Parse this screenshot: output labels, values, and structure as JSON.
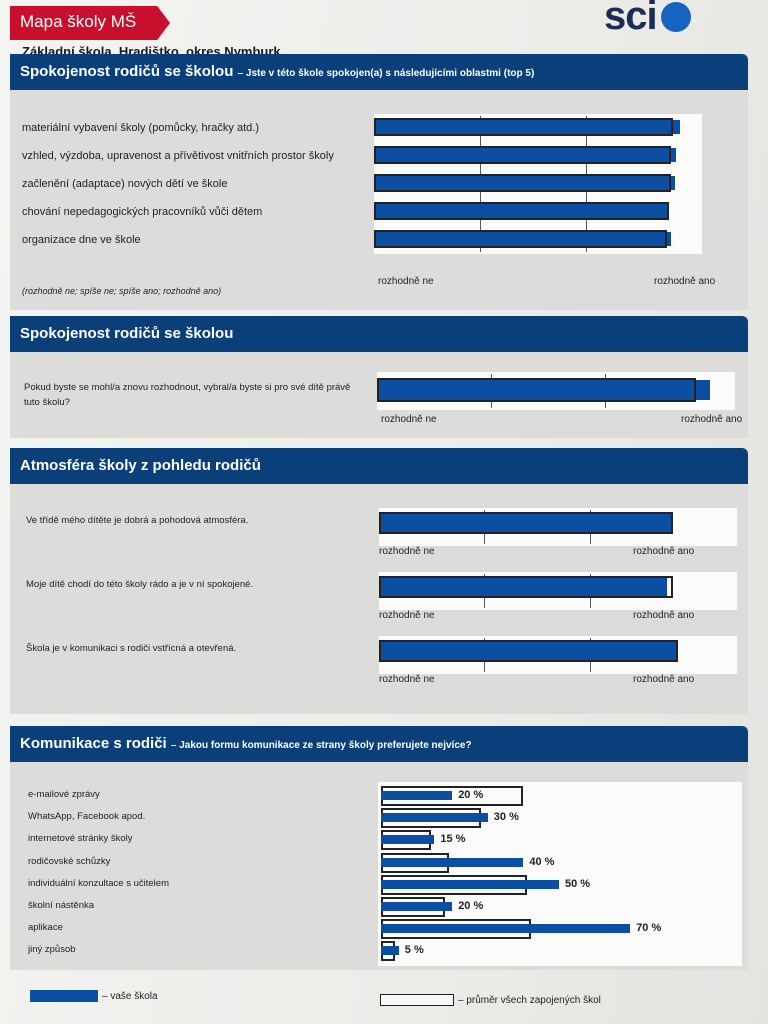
{
  "header": {
    "tag": "Mapa školy MŠ",
    "logo": "sci",
    "school": "Základní škola, Hradištko, okres Nymburk"
  },
  "colors": {
    "accent": "#0b3f7a",
    "bar": "#0b4ea2",
    "tag": "#c8102e"
  },
  "legend": {
    "ours": "– vaše škola",
    "avg": "– průměr všech zapojených škol"
  },
  "chart_data": [
    {
      "type": "bar",
      "title": "Spokojenost rodičů se školou",
      "subtitle": "– Jste v této škole spokojen(a) s následujícími oblastmi (top 5)",
      "scale_note": "(rozhodně ne; spíše ne; spíše ano; rozhodně ano)",
      "scale_min_label": "rozhodně ne",
      "scale_max_label": "rozhodně ano",
      "xlim": [
        1,
        4
      ],
      "categories": [
        "materiální vybavení školy (pomůcky, hračky atd.)",
        "vzhled, výzdoba, upravenost a přívětivost vnitřních prostor školy",
        "začlenění (adaptace) nových dětí ve škole",
        "chování nepedagogických pracovníků vůči dětem",
        "organizace dne ve škole"
      ],
      "series": [
        {
          "values": [
            3.89,
            3.85,
            3.84,
            3.78,
            3.8
          ]
        },
        {
          "values": [
            3.82,
            3.8,
            3.8,
            3.78,
            3.76
          ]
        }
      ]
    },
    {
      "type": "bar",
      "title": "Spokojenost rodičů se školou",
      "scale_min_label": "rozhodně ne",
      "scale_max_label": "rozhodně ano",
      "xlim": [
        1,
        4
      ],
      "categories": [
        "Pokud byste se mohl/a znovu rozhodnout, vybral/a byste si pro své dítě právě tuto školu?"
      ],
      "series": [
        {
          "values": [
            3.92
          ]
        },
        {
          "values": [
            3.8
          ]
        }
      ]
    },
    {
      "type": "bar",
      "title": "Atmosféra školy z pohledu rodičů",
      "scale_min_label": "rozhodně ne",
      "scale_max_label": "rozhodně ano",
      "xlim": [
        1,
        4
      ],
      "categories": [
        "Ve třídě mého dítěte je dobrá a pohodová atmosféra.",
        "Moje dítě chodí do této školy rádo a je v ní spokojené.",
        "Škola je v komunikaci s rodiči vstřícná a otevřená."
      ],
      "series": [
        {
          "values": [
            3.77,
            3.73,
            3.84
          ]
        },
        {
          "values": [
            3.79,
            3.79,
            3.84
          ]
        }
      ]
    },
    {
      "type": "bar",
      "title": "Komunikace s rodiči",
      "subtitle": "– Jakou formu komunikace ze strany školy preferujete nejvíce?",
      "unit": "%",
      "xlim": [
        0,
        100
      ],
      "categories": [
        "e-mailové zprávy",
        "WhatsApp, Facebook apod.",
        "internetové stránky školy",
        "rodičovské schůzky",
        "individuální konzultace s učitelem",
        "školní nástěnka",
        "aplikace",
        "jiný způsob"
      ],
      "labels": [
        "20 %",
        "30 %",
        "15 %",
        "40 %",
        "50 %",
        "20 %",
        "70 %",
        "5 %"
      ],
      "series": [
        {
          "values": [
            20,
            30,
            15,
            40,
            50,
            20,
            70,
            5
          ]
        },
        {
          "values": [
            40,
            28,
            14,
            19,
            41,
            18,
            42,
            4
          ]
        }
      ]
    }
  ]
}
